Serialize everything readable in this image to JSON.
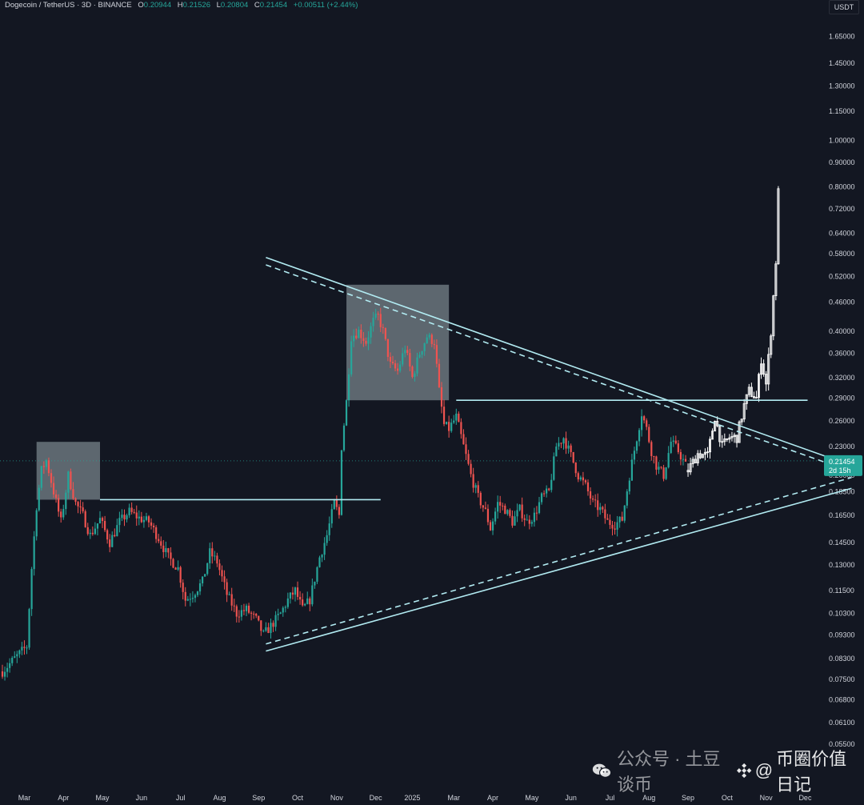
{
  "legend": {
    "symbol": "Dogecoin / TetherUS · 3D · BINANCE",
    "o_label": "O",
    "o": "0.20944",
    "h_label": "H",
    "h": "0.21526",
    "l_label": "L",
    "l": "0.20804",
    "c_label": "C",
    "c": "0.21454",
    "change": "+0.00511 (+2.44%)"
  },
  "currency": "USDT",
  "colors": {
    "background": "#131722",
    "up": "#26a69a",
    "down": "#ef5350",
    "projection": "#ffffff",
    "trendline": "#b2ebf2",
    "box": "#b0bec5"
  },
  "watermark": {
    "left": "公众号 · 土豆谈币",
    "at": "@",
    "right": "币圈价值日记"
  },
  "chart_data": {
    "type": "candlestick",
    "y_scale": "log",
    "ylim": [
      0.0525,
      1.75
    ],
    "y_ticks": [
      "1.65000",
      "1.45000",
      "1.30000",
      "1.15000",
      "1.00000",
      "0.90000",
      "0.80000",
      "0.72000",
      "0.64000",
      "0.58000",
      "0.52000",
      "0.46000",
      "0.40000",
      "0.36000",
      "0.32000",
      "0.29000",
      "0.26000",
      "0.23000",
      "0.20000",
      "0.18500",
      "0.16500",
      "0.14500",
      "0.13000",
      "0.11500",
      "0.10300",
      "0.09300",
      "0.08300",
      "0.07500",
      "0.06800",
      "0.06100",
      "0.05500"
    ],
    "x_ticks": [
      "Mar",
      "Apr",
      "May",
      "Jun",
      "Jul",
      "Aug",
      "Sep",
      "Oct",
      "Nov",
      "Dec",
      "2025",
      "Mar",
      "Apr",
      "May",
      "Jun",
      "Jul",
      "Aug",
      "Sep",
      "Oct",
      "Nov",
      "Dec"
    ],
    "x_tick_index": [
      9,
      25,
      41,
      57,
      73,
      89,
      105,
      121,
      137,
      153,
      168,
      185,
      201,
      217,
      233,
      249,
      265,
      281,
      297,
      313,
      329
    ],
    "last_price": "0.21454",
    "countdown": "2d 15h",
    "price_anchors": [
      [
        0,
        0.078
      ],
      [
        5,
        0.083
      ],
      [
        10,
        0.088
      ],
      [
        12,
        0.128
      ],
      [
        14,
        0.173
      ],
      [
        16,
        0.205
      ],
      [
        18,
        0.215
      ],
      [
        21,
        0.185
      ],
      [
        24,
        0.16
      ],
      [
        27,
        0.2
      ],
      [
        30,
        0.175
      ],
      [
        33,
        0.165
      ],
      [
        36,
        0.15
      ],
      [
        40,
        0.162
      ],
      [
        44,
        0.145
      ],
      [
        48,
        0.16
      ],
      [
        52,
        0.168
      ],
      [
        56,
        0.163
      ],
      [
        60,
        0.16
      ],
      [
        64,
        0.148
      ],
      [
        68,
        0.135
      ],
      [
        72,
        0.128
      ],
      [
        75,
        0.11
      ],
      [
        78,
        0.113
      ],
      [
        82,
        0.12
      ],
      [
        85,
        0.138
      ],
      [
        88,
        0.132
      ],
      [
        92,
        0.113
      ],
      [
        96,
        0.103
      ],
      [
        100,
        0.105
      ],
      [
        104,
        0.1
      ],
      [
        107,
        0.093
      ],
      [
        110,
        0.097
      ],
      [
        114,
        0.103
      ],
      [
        117,
        0.11
      ],
      [
        120,
        0.115
      ],
      [
        123,
        0.105
      ],
      [
        126,
        0.11
      ],
      [
        130,
        0.135
      ],
      [
        133,
        0.15
      ],
      [
        136,
        0.175
      ],
      [
        138,
        0.165
      ],
      [
        139,
        0.23
      ],
      [
        141,
        0.285
      ],
      [
        143,
        0.39
      ],
      [
        146,
        0.4
      ],
      [
        149,
        0.38
      ],
      [
        152,
        0.42
      ],
      [
        154,
        0.43
      ],
      [
        156,
        0.4
      ],
      [
        159,
        0.34
      ],
      [
        162,
        0.33
      ],
      [
        165,
        0.37
      ],
      [
        168,
        0.32
      ],
      [
        171,
        0.36
      ],
      [
        174,
        0.39
      ],
      [
        177,
        0.38
      ],
      [
        179,
        0.3
      ],
      [
        181,
        0.255
      ],
      [
        183,
        0.25
      ],
      [
        186,
        0.265
      ],
      [
        189,
        0.23
      ],
      [
        192,
        0.2
      ],
      [
        195,
        0.18
      ],
      [
        198,
        0.168
      ],
      [
        200,
        0.155
      ],
      [
        203,
        0.175
      ],
      [
        206,
        0.17
      ],
      [
        209,
        0.16
      ],
      [
        212,
        0.17
      ],
      [
        215,
        0.16
      ],
      [
        218,
        0.165
      ],
      [
        221,
        0.18
      ],
      [
        224,
        0.185
      ],
      [
        227,
        0.23
      ],
      [
        230,
        0.24
      ],
      [
        233,
        0.22
      ],
      [
        236,
        0.2
      ],
      [
        239,
        0.19
      ],
      [
        242,
        0.175
      ],
      [
        245,
        0.17
      ],
      [
        248,
        0.16
      ],
      [
        251,
        0.158
      ],
      [
        254,
        0.162
      ],
      [
        257,
        0.2
      ],
      [
        260,
        0.24
      ],
      [
        262,
        0.27
      ],
      [
        264,
        0.25
      ],
      [
        266,
        0.225
      ],
      [
        268,
        0.21
      ],
      [
        271,
        0.2
      ],
      [
        274,
        0.235
      ],
      [
        277,
        0.225
      ],
      [
        280,
        0.21
      ]
    ],
    "projection_anchors": [
      [
        281,
        0.205
      ],
      [
        285,
        0.222
      ],
      [
        289,
        0.22
      ],
      [
        292,
        0.265
      ],
      [
        295,
        0.23
      ],
      [
        298,
        0.24
      ],
      [
        301,
        0.24
      ],
      [
        304,
        0.28
      ],
      [
        306,
        0.3
      ],
      [
        309,
        0.29
      ],
      [
        311,
        0.35
      ],
      [
        313,
        0.31
      ],
      [
        315,
        0.4
      ],
      [
        317,
        0.56
      ],
      [
        318,
        0.78
      ]
    ],
    "overlays": {
      "boxes": [
        {
          "from_index": 14,
          "to_index": 40,
          "ylim": [
            0.178,
            0.235
          ]
        },
        {
          "from_index": 141,
          "to_index": 183,
          "ylim": [
            0.287,
            0.5
          ]
        }
      ],
      "horizontal_levels": [
        {
          "price": 0.178,
          "from_index": 40,
          "to_index": 155
        },
        {
          "price": 0.287,
          "from_index": 186,
          "to_index": 330
        }
      ],
      "descending_solid": {
        "from": [
          108,
          0.57
        ],
        "to": [
          350,
          0.208
        ]
      },
      "descending_dashed": {
        "from": [
          108,
          0.55
        ],
        "to": [
          350,
          0.202
        ]
      },
      "ascending_solid": {
        "from": [
          108,
          0.086
        ],
        "to": [
          348,
          0.188
        ]
      },
      "ascending_dashed": {
        "from": [
          108,
          0.089
        ],
        "to": [
          348,
          0.198
        ]
      }
    }
  }
}
